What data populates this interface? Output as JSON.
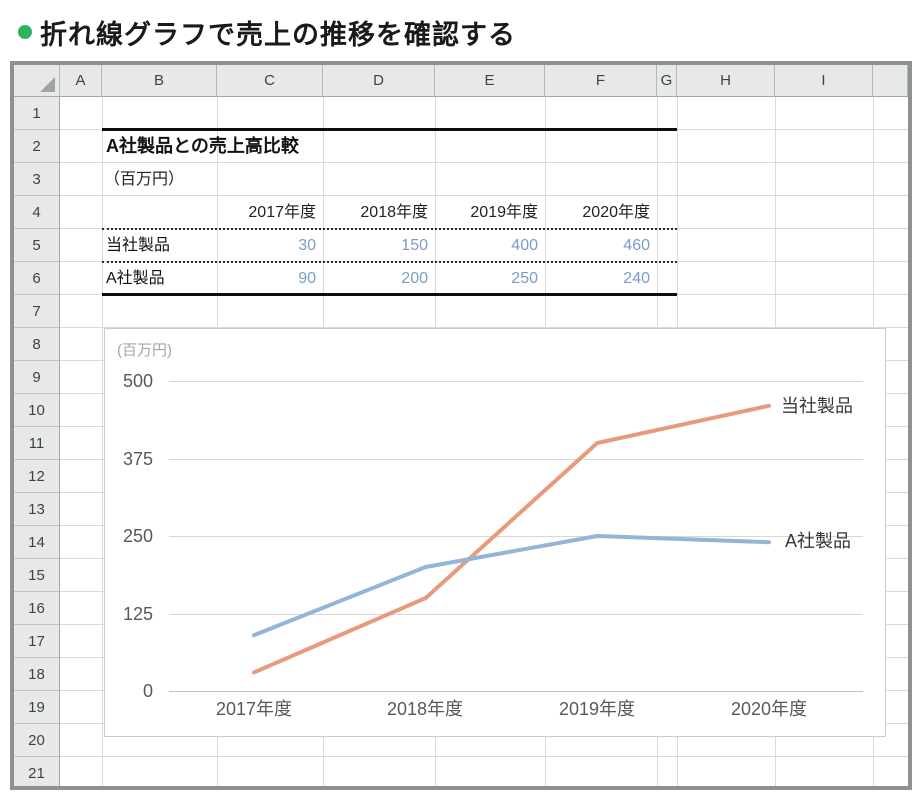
{
  "page": {
    "title": "折れ線グラフで売上の推移を確認する"
  },
  "spreadsheet": {
    "column_letters": [
      "A",
      "B",
      "C",
      "D",
      "E",
      "F",
      "G",
      "H",
      "I"
    ],
    "row_count": 21,
    "table": {
      "title": "A社製品との売上高比較",
      "unit": "（百万円）",
      "year_headers": [
        "2017年度",
        "2018年度",
        "2019年度",
        "2020年度"
      ],
      "rows": [
        {
          "label": "当社製品",
          "values": [
            "30",
            "150",
            "400",
            "460"
          ]
        },
        {
          "label": "A社製品",
          "values": [
            "90",
            "200",
            "250",
            "240"
          ]
        }
      ]
    }
  },
  "chart_data": {
    "type": "line",
    "title": "",
    "unit_label": "(百万円)",
    "categories": [
      "2017年度",
      "2018年度",
      "2019年度",
      "2020年度"
    ],
    "series": [
      {
        "name": "当社製品",
        "values": [
          30,
          150,
          400,
          460
        ],
        "color": "#e89b7c"
      },
      {
        "name": "A社製品",
        "values": [
          90,
          200,
          250,
          240
        ],
        "color": "#92b5d8"
      }
    ],
    "xlabel": "",
    "ylabel": "(百万円)",
    "ylim": [
      0,
      500
    ],
    "yticks": [
      0,
      125,
      250,
      375,
      500
    ],
    "ytick_labels_top_to_bottom": [
      "500",
      "375",
      "250",
      "125",
      "0"
    ],
    "grid": true,
    "legend_position": "end-of-line-labels"
  },
  "colors": {
    "accent_green": "#2eb260",
    "value_blue": "#7b9bc8",
    "series_orange": "#e89b7c",
    "series_blue": "#92b5d8",
    "gridline_gray": "#d6d7d8"
  }
}
